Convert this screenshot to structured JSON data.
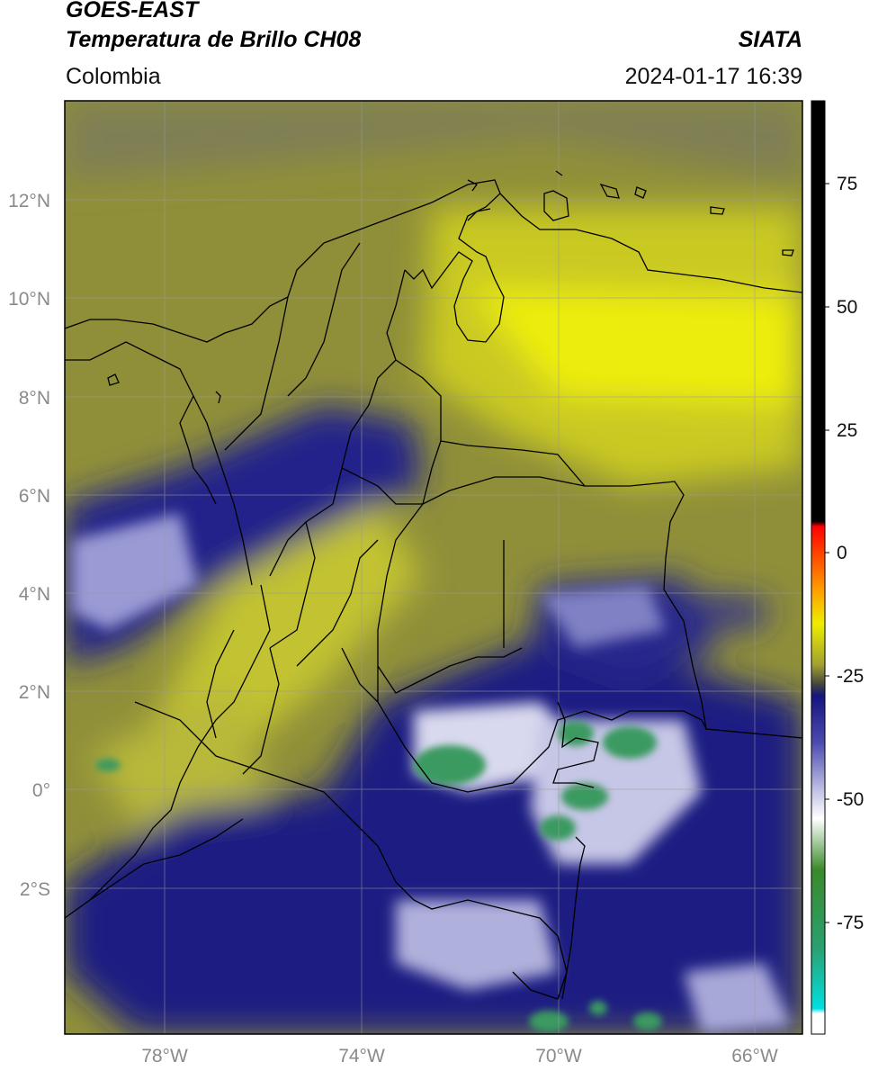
{
  "header": {
    "satellite": "GOES-EAST",
    "product": "Temperatura de Brillo CH08",
    "agency": "SIATA",
    "region": "Colombia",
    "datetime": "2024-01-17 16:39"
  },
  "map": {
    "lat_ticks": [
      "12°N",
      "10°N",
      "8°N",
      "6°N",
      "4°N",
      "2°N",
      "0°",
      "2°S"
    ],
    "lon_ticks": [
      "78°W",
      "74°W",
      "70°W",
      "66°W"
    ],
    "grid": true
  },
  "colorbar": {
    "ticks": [
      "75",
      "50",
      "25",
      "0",
      "-25",
      "-50",
      "-75"
    ],
    "stops": [
      {
        "value": 90,
        "color": "#000000"
      },
      {
        "value": 8,
        "color": "#000000"
      },
      {
        "value": 7,
        "color": "#ff0000"
      },
      {
        "value": -5,
        "color": "#ff9900"
      },
      {
        "value": -12,
        "color": "#eeee00"
      },
      {
        "value": -20,
        "color": "#a0a030"
      },
      {
        "value": -24,
        "color": "#404040"
      },
      {
        "value": -26,
        "color": "#151580"
      },
      {
        "value": -35,
        "color": "#4a4ab0"
      },
      {
        "value": -45,
        "color": "#c8c8e8"
      },
      {
        "value": -50,
        "color": "#ffffff"
      },
      {
        "value": -60,
        "color": "#3a8a2a"
      },
      {
        "value": -75,
        "color": "#2aa070"
      },
      {
        "value": -87,
        "color": "#00e0e0"
      },
      {
        "value": -88,
        "color": "#ffffff"
      },
      {
        "value": -92,
        "color": "#ffffff"
      }
    ]
  }
}
